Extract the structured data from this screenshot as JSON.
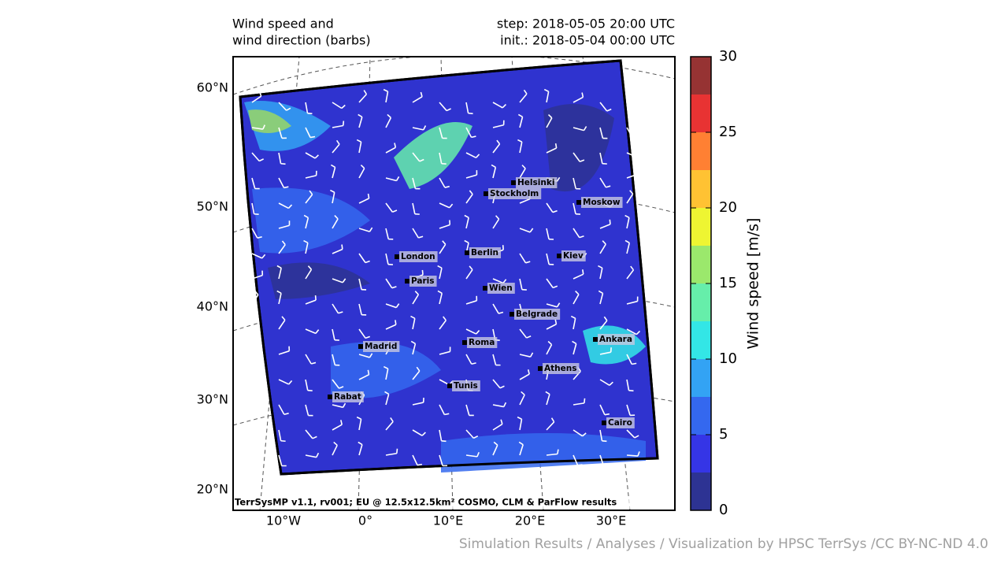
{
  "header": {
    "title_lines": [
      "Wind speed and",
      "wind direction (barbs)"
    ],
    "step": "step: 2018-05-05 20:00 UTC",
    "init": "init.: 2018-05-04 00:00 UTC"
  },
  "map": {
    "lat_labels": [
      "60°N",
      "50°N",
      "40°N",
      "30°N",
      "20°N"
    ],
    "lon_labels": [
      "10°W",
      "0°",
      "10°E",
      "20°E",
      "30°E"
    ],
    "cities": [
      "Helsinki",
      "Stockholm",
      "Moskow",
      "London",
      "Berlin",
      "Kiev",
      "Paris",
      "Wien",
      "Belgrade",
      "Madrid",
      "Roma",
      "Ankara",
      "Athens",
      "Tunis",
      "Rabat",
      "Cairo"
    ],
    "credit": "TerrSysMP v1.1, rv001; EU @ 12.5x12.5km² COSMO, CLM & ParFlow results"
  },
  "colorbar": {
    "label": "Wind speed [m/s]",
    "lim": [
      0,
      30
    ],
    "ticks": [
      0,
      5,
      10,
      15,
      20,
      25,
      30
    ],
    "levels": [
      0,
      2.5,
      5,
      7.5,
      10,
      12.5,
      15,
      17.5,
      20,
      22.5,
      25,
      27.5,
      30
    ],
    "colors": [
      "#2d3393",
      "#3535e6",
      "#3468ef",
      "#33a3f4",
      "#33e6e6",
      "#66eeaa",
      "#9be86c",
      "#eef532",
      "#ffc233",
      "#ff8033",
      "#e83333",
      "#963333"
    ]
  },
  "footer": "Simulation Results / Analyses / Visualization by HPSC TerrSys /CC BY-NC-ND 4.0"
}
